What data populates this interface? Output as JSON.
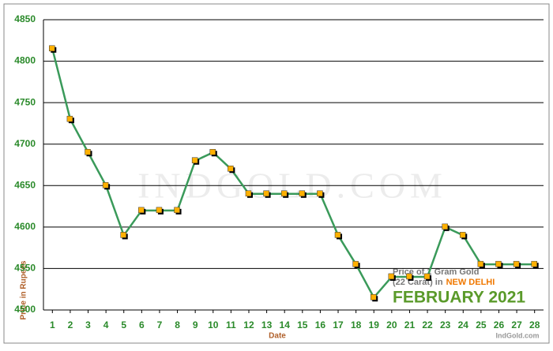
{
  "chart_data": {
    "type": "line",
    "x": [
      1,
      2,
      3,
      4,
      5,
      6,
      7,
      8,
      9,
      10,
      11,
      12,
      13,
      14,
      15,
      16,
      17,
      18,
      19,
      20,
      21,
      22,
      23,
      24,
      25,
      26,
      27,
      28
    ],
    "series": [
      {
        "name": "Price of 1 Gram Gold",
        "color": "#3a9a5a",
        "marker_color": "#ffb000",
        "values": [
          4815,
          4730,
          4690,
          4650,
          4590,
          4620,
          4620,
          4620,
          4680,
          4690,
          4670,
          4640,
          4640,
          4640,
          4640,
          4640,
          4590,
          4555,
          4515,
          4540,
          4540,
          4540,
          4600,
          4590,
          4555,
          4555,
          4555,
          4555
        ]
      }
    ],
    "xlim": [
      0.5,
      28.5
    ],
    "xticks": [
      1,
      2,
      3,
      4,
      5,
      6,
      7,
      8,
      9,
      10,
      11,
      12,
      13,
      14,
      15,
      16,
      17,
      18,
      19,
      20,
      21,
      22,
      23,
      24,
      25,
      26,
      27,
      28
    ],
    "ylim": [
      4500,
      4850
    ],
    "yticks": [
      4500,
      4550,
      4600,
      4650,
      4700,
      4750,
      4800,
      4850
    ],
    "grid": true,
    "x_label": "Date",
    "y_label": "Price in Rupees",
    "annotation_line1": "Price of 1 Gram Gold",
    "annotation_line2": "(22 Carat) in",
    "annotation_city": "NEW DELHI",
    "annotation_month": "FEBRUARY 2021",
    "watermark": "INDGOLD.COM",
    "credit": "IndGold.com"
  }
}
